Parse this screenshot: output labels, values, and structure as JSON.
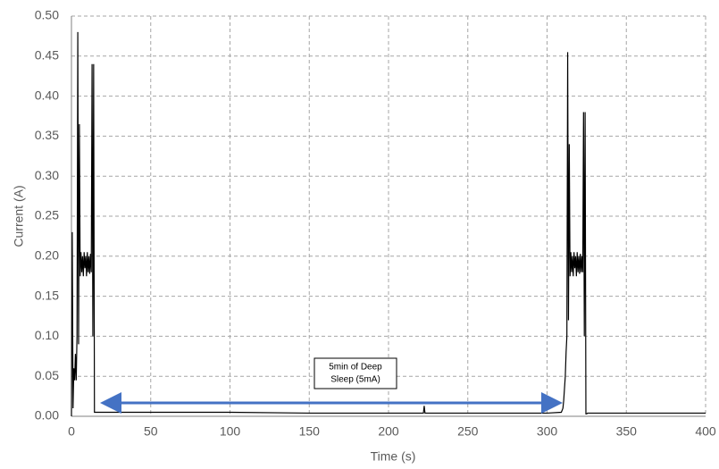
{
  "chart_data": {
    "type": "line",
    "x_label": "Time (s)",
    "y_label": "Current (A)",
    "annotation": [
      "5min of Deep",
      "Sleep (5mA)"
    ],
    "x": [
      0,
      0.5,
      1,
      1.5,
      2,
      2.5,
      3,
      3.5,
      4,
      4.5,
      5,
      5.5,
      6,
      6.5,
      7,
      7.5,
      8,
      8.5,
      9,
      9.5,
      10,
      10.5,
      11,
      11.5,
      12,
      12.5,
      13,
      13.5,
      14,
      14.5,
      15,
      100,
      150,
      222,
      222.5,
      223,
      300,
      309,
      310,
      310.5,
      311,
      311.5,
      312,
      312.5,
      313,
      313.5,
      314,
      314.5,
      315,
      315.5,
      316,
      316.5,
      317,
      317.5,
      318,
      318.5,
      319,
      319.5,
      320,
      320.5,
      321,
      321.5,
      322,
      322.5,
      323,
      323.5,
      324,
      324.5,
      325,
      325.5,
      326,
      350,
      400
    ],
    "series": [
      {
        "color": "#000000",
        "values": [
          0,
          0.23,
          0.01,
          0.06,
          0.045,
          0.078,
          0.045,
          0.1,
          0.48,
          0.09,
          0.365,
          0.175,
          0.205,
          0.18,
          0.2,
          0.175,
          0.205,
          0.185,
          0.2,
          0.175,
          0.205,
          0.18,
          0.2,
          0.178,
          0.203,
          0.18,
          0.44,
          0.1,
          0.44,
          0.005,
          0.005,
          0.005,
          0.004,
          0.004,
          0.013,
          0.004,
          0.004,
          0.005,
          0.01,
          0.02,
          0.035,
          0.05,
          0.08,
          0.1,
          0.455,
          0.12,
          0.34,
          0.175,
          0.205,
          0.18,
          0.2,
          0.175,
          0.205,
          0.185,
          0.2,
          0.175,
          0.205,
          0.18,
          0.2,
          0.178,
          0.203,
          0.18,
          0.2,
          0.18,
          0.38,
          0.1,
          0.38,
          0.003,
          0.003,
          0.004,
          0.004,
          0.004,
          0.004
        ]
      }
    ],
    "xlim": [
      0,
      400
    ],
    "xticks": [
      0,
      50,
      100,
      150,
      200,
      250,
      300,
      350,
      400
    ],
    "ylim": [
      0,
      0.5
    ],
    "yticks": [
      {
        "value": 0,
        "label": "0.00"
      },
      {
        "value": 0.05,
        "label": "0.05"
      },
      {
        "value": 0.1,
        "label": "0.10"
      },
      {
        "value": 0.15,
        "label": "0.15"
      },
      {
        "value": 0.2,
        "label": "0.20"
      },
      {
        "value": 0.25,
        "label": "0.25"
      },
      {
        "value": 0.3,
        "label": "0.30"
      },
      {
        "value": 0.35,
        "label": "0.35"
      },
      {
        "value": 0.4,
        "label": "0.40"
      },
      {
        "value": 0.45,
        "label": "0.45"
      },
      {
        "value": 0.5,
        "label": "0.50"
      }
    ],
    "grid": true
  }
}
